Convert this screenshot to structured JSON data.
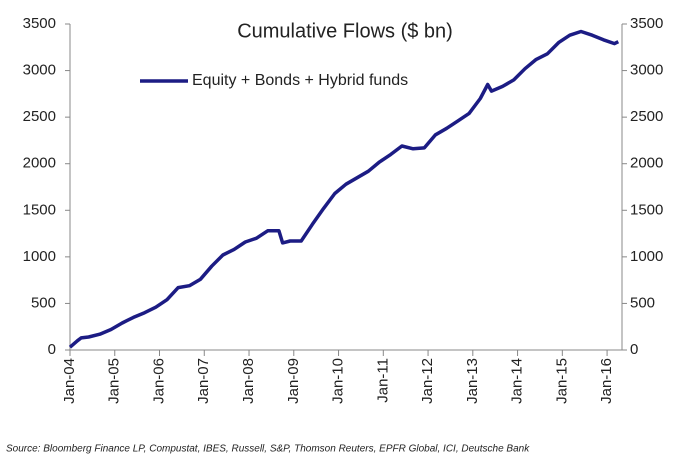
{
  "chart_data": {
    "type": "line",
    "title": "Cumulative Flows ($ bn)",
    "source": "Source: Bloomberg Finance LP, Compustat, IBES, Russell, S&P, Thomson Reuters, EPFR Global, ICI, Deutsche Bank",
    "legend": "upper left",
    "x": [
      "2004-01",
      "2004-03",
      "2004-04",
      "2004-06",
      "2004-09",
      "2004-12",
      "2005-03",
      "2005-06",
      "2005-09",
      "2005-12",
      "2006-03",
      "2006-06",
      "2006-09",
      "2006-12",
      "2007-03",
      "2007-06",
      "2007-09",
      "2007-12",
      "2008-03",
      "2008-06",
      "2008-09",
      "2008-10",
      "2008-12",
      "2009-03",
      "2009-06",
      "2009-09",
      "2009-12",
      "2010-03",
      "2010-06",
      "2010-09",
      "2010-12",
      "2011-03",
      "2011-06",
      "2011-09",
      "2011-12",
      "2012-03",
      "2012-06",
      "2012-09",
      "2012-12",
      "2013-03",
      "2013-05",
      "2013-06",
      "2013-09",
      "2013-12",
      "2014-03",
      "2014-06",
      "2014-09",
      "2014-12",
      "2015-03",
      "2015-06",
      "2015-09",
      "2015-12",
      "2016-03",
      "2016-04"
    ],
    "series": [
      {
        "name": "Equity + Bonds + Hybrid funds",
        "color": "#1c1c84",
        "values": [
          30,
          100,
          130,
          140,
          170,
          220,
          290,
          350,
          400,
          460,
          540,
          670,
          690,
          760,
          900,
          1020,
          1080,
          1160,
          1200,
          1280,
          1280,
          1150,
          1170,
          1170,
          1350,
          1520,
          1680,
          1780,
          1850,
          1920,
          2020,
          2100,
          2190,
          2160,
          2170,
          2310,
          2380,
          2460,
          2540,
          2700,
          2850,
          2780,
          2830,
          2900,
          3020,
          3120,
          3180,
          3300,
          3380,
          3420,
          3380,
          3330,
          3290,
          3310
        ]
      }
    ],
    "xlim": [
      "2004-01",
      "2016-05"
    ],
    "xticks": [
      {
        "value": "2004-01",
        "label": "Jan-04"
      },
      {
        "value": "2005-01",
        "label": "Jan-05"
      },
      {
        "value": "2006-01",
        "label": "Jan-06"
      },
      {
        "value": "2007-01",
        "label": "Jan-07"
      },
      {
        "value": "2008-01",
        "label": "Jan-08"
      },
      {
        "value": "2009-01",
        "label": "Jan-09"
      },
      {
        "value": "2010-01",
        "label": "Jan-10"
      },
      {
        "value": "2011-01",
        "label": "Jan-11"
      },
      {
        "value": "2012-01",
        "label": "Jan-12"
      },
      {
        "value": "2013-01",
        "label": "Jan-13"
      },
      {
        "value": "2014-01",
        "label": "Jan-14"
      },
      {
        "value": "2015-01",
        "label": "Jan-15"
      },
      {
        "value": "2016-01",
        "label": "Jan-16"
      }
    ],
    "ylim": [
      0,
      3500
    ],
    "yticks": [
      0,
      500,
      1000,
      1500,
      2000,
      2500,
      3000,
      3500
    ],
    "y2lim": [
      0,
      3500
    ],
    "y2ticks": [
      0,
      500,
      1000,
      1500,
      2000,
      2500,
      3000,
      3500
    ]
  }
}
